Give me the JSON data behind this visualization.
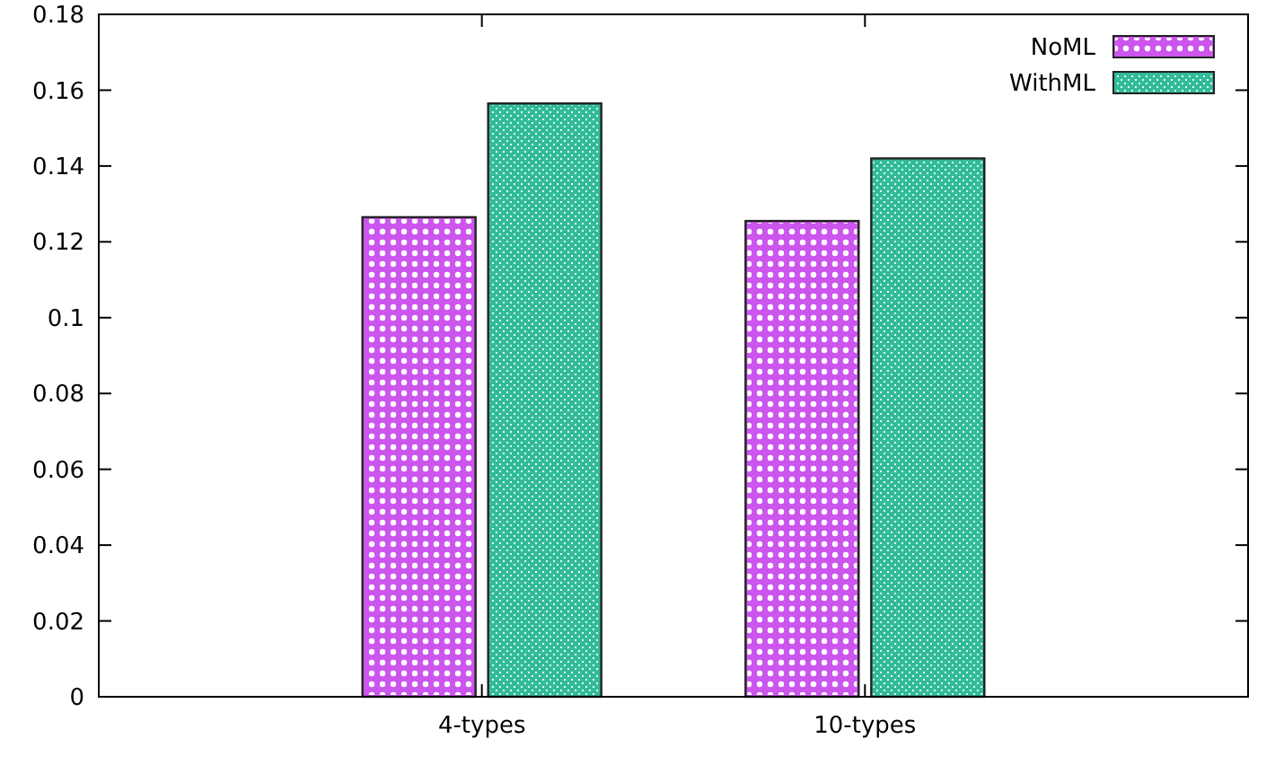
{
  "chart_data": {
    "type": "bar",
    "categories": [
      "4-types",
      "10-types"
    ],
    "series": [
      {
        "name": "NoML",
        "color": "#cc55ee",
        "values": [
          0.1265,
          0.1255
        ]
      },
      {
        "name": "WithML",
        "color": "#33bb99",
        "values": [
          0.1565,
          0.142
        ]
      }
    ],
    "ylim": [
      0,
      0.18
    ],
    "yticks": [
      0,
      0.02,
      0.04,
      0.06,
      0.08,
      0.1,
      0.12,
      0.14,
      0.16,
      0.18
    ],
    "legend": "top right",
    "grid": false
  }
}
